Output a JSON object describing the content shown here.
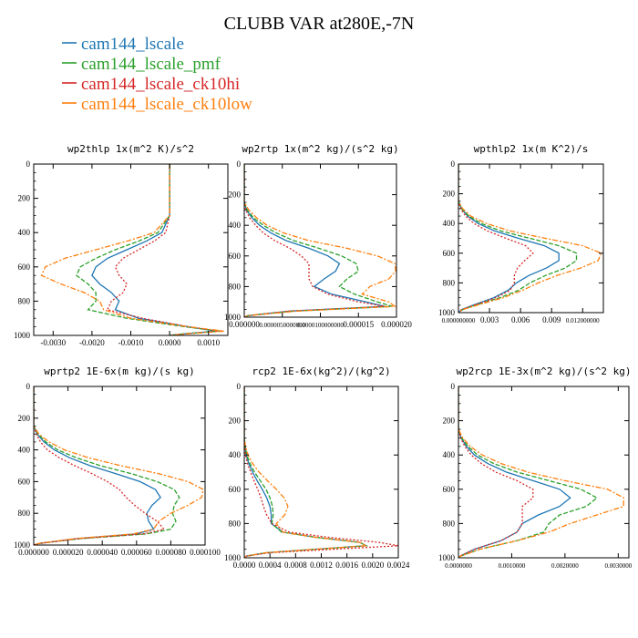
{
  "figure": {
    "title": "CLUBB VAR at280E,-7N",
    "legend": [
      {
        "name": "cam144_lscale",
        "color": "#1f77b4"
      },
      {
        "name": "cam144_lscale_pmf",
        "color": "#2ca02c"
      },
      {
        "name": "cam144_lscale_ck10hi",
        "color": "#d62728"
      },
      {
        "name": "cam144_lscale_ck10low",
        "color": "#ff7f0e"
      }
    ]
  },
  "chart_data": [
    {
      "type": "line",
      "title": "wp2thlp  1x(m^2 K)/s^2",
      "xlim": [
        -0.0035,
        0.0015
      ],
      "ylim": [
        1000,
        0
      ],
      "xticks": [
        -0.003,
        -0.002,
        -0.001,
        0.0,
        0.001
      ],
      "xtick_labels": [
        "-0.0030",
        "-0.0020",
        "-0.0010",
        "0.0000",
        "0.0010"
      ],
      "yticks": [
        0,
        200,
        400,
        600,
        800,
        1000
      ],
      "y": [
        0,
        300,
        400,
        450,
        500,
        550,
        600,
        650,
        700,
        750,
        800,
        850,
        900,
        950,
        975,
        990,
        1000
      ],
      "series": [
        {
          "name": "cam144_lscale",
          "values": [
            0,
            0,
            -0.0002,
            -0.0006,
            -0.0011,
            -0.0016,
            -0.0019,
            -0.002,
            -0.0018,
            -0.0015,
            -0.0013,
            -0.0014,
            -0.0008,
            0.0005,
            0.0012,
            0.0004,
            0.0
          ]
        },
        {
          "name": "cam144_lscale_pmf",
          "values": [
            0,
            0,
            -0.0003,
            -0.0008,
            -0.0014,
            -0.0019,
            -0.0023,
            -0.0024,
            -0.0021,
            -0.0019,
            -0.0019,
            -0.0021,
            -0.0011,
            0.0004,
            0.0013,
            0.0004,
            0.0
          ]
        },
        {
          "name": "cam144_lscale_ck10hi",
          "values": [
            0,
            0,
            -0.0001,
            -0.0004,
            -0.0008,
            -0.0012,
            -0.0014,
            -0.0013,
            -0.0011,
            -0.0012,
            -0.0015,
            -0.0016,
            -0.0007,
            0.0005,
            0.0013,
            0.0005,
            0.0
          ]
        },
        {
          "name": "cam144_lscale_ck10low",
          "values": [
            0,
            0,
            -0.0004,
            -0.0011,
            -0.0019,
            -0.0027,
            -0.0032,
            -0.0033,
            -0.0028,
            -0.0022,
            -0.0018,
            -0.0017,
            -0.001,
            0.0005,
            0.0014,
            0.0005,
            0.0
          ]
        }
      ]
    },
    {
      "type": "line",
      "title": "wp2rtp  1x(m^2 kg)/(s^2 kg)",
      "xlim": [
        0,
        2e-05
      ],
      "ylim": [
        1000,
        0
      ],
      "xticks": [
        0,
        5e-06,
        1e-05,
        1.5e-05,
        2e-05
      ],
      "xtick_labels": [
        "0.000000",
        "0.0000050000000",
        "0.0000100000000",
        "0.000015",
        "0.000020"
      ],
      "yticks": [
        0,
        200,
        400,
        600,
        800,
        1000
      ],
      "y": [
        0,
        250,
        300,
        350,
        400,
        450,
        500,
        550,
        600,
        650,
        700,
        750,
        800,
        850,
        900,
        930,
        960,
        990,
        1000
      ],
      "series": [
        {
          "name": "cam144_lscale",
          "values": [
            0,
            0,
            3e-07,
            1e-06,
            2e-06,
            3.5e-06,
            5.5e-06,
            8.5e-06,
            1.1e-05,
            1.25e-05,
            1.2e-05,
            1.05e-05,
            9.2e-06,
            1.15e-05,
            1.6e-05,
            1.85e-05,
            6e-06,
            5e-07,
            0
          ]
        },
        {
          "name": "cam144_lscale_pmf",
          "values": [
            0,
            0,
            4e-07,
            1.2e-06,
            2.5e-06,
            4.2e-06,
            6.5e-06,
            9.8e-06,
            1.28e-05,
            1.47e-05,
            1.5e-05,
            1.35e-05,
            1.25e-05,
            1.45e-05,
            1.75e-05,
            1.95e-05,
            6.5e-06,
            5e-07,
            0
          ]
        },
        {
          "name": "cam144_lscale_ck10hi",
          "values": [
            0,
            0,
            2e-07,
            7e-07,
            1.5e-06,
            2.5e-06,
            4e-06,
            6e-06,
            7.5e-06,
            8.5e-06,
            8.5e-06,
            8.5e-06,
            9e-06,
            1.1e-05,
            1.5e-05,
            1.85e-05,
            6e-06,
            5e-07,
            0
          ]
        },
        {
          "name": "cam144_lscale_ck10low",
          "values": [
            0,
            0,
            6e-07,
            1.6e-06,
            3e-06,
            5.2e-06,
            8.5e-06,
            1.35e-05,
            1.75e-05,
            1.98e-05,
            1.99e-05,
            1.9e-05,
            1.65e-05,
            1.55e-05,
            1.9e-05,
            1.98e-05,
            7e-06,
            5e-07,
            0
          ]
        }
      ]
    },
    {
      "type": "line",
      "title": "wpthlp2  1x(m K^2)/s",
      "xlim": [
        0,
        0.014
      ],
      "ylim": [
        1000,
        0
      ],
      "xticks": [
        0,
        0.003,
        0.006,
        0.009,
        0.012
      ],
      "xtick_labels": [
        "0.000000000",
        "0.003",
        "0.006",
        "0.009",
        "0.012000000"
      ],
      "yticks": [
        0,
        200,
        400,
        600,
        800,
        1000
      ],
      "y": [
        0,
        250,
        300,
        350,
        400,
        450,
        500,
        550,
        600,
        650,
        700,
        750,
        800,
        850,
        900,
        950,
        980,
        1000
      ],
      "series": [
        {
          "name": "cam144_lscale",
          "values": [
            0,
            0,
            0.0003,
            0.0009,
            0.0019,
            0.0035,
            0.0058,
            0.0083,
            0.0097,
            0.0097,
            0.0085,
            0.0068,
            0.0056,
            0.0048,
            0.0034,
            0.0014,
            0.0003,
            0
          ]
        },
        {
          "name": "cam144_lscale_pmf",
          "values": [
            0,
            0,
            0.0003,
            0.001,
            0.0022,
            0.0041,
            0.0069,
            0.0097,
            0.0114,
            0.0114,
            0.0103,
            0.0084,
            0.0069,
            0.0058,
            0.004,
            0.0016,
            0.0004,
            0
          ]
        },
        {
          "name": "cam144_lscale_ck10hi",
          "values": [
            0,
            0,
            0.0002,
            0.0007,
            0.0015,
            0.0028,
            0.0046,
            0.0065,
            0.0072,
            0.0064,
            0.0057,
            0.0054,
            0.0054,
            0.005,
            0.0036,
            0.0015,
            0.0003,
            0
          ]
        },
        {
          "name": "cam144_lscale_ck10low",
          "values": [
            0,
            0,
            0.0004,
            0.0012,
            0.0027,
            0.005,
            0.0084,
            0.012,
            0.0138,
            0.0135,
            0.0118,
            0.0095,
            0.0077,
            0.0062,
            0.0043,
            0.0018,
            0.0004,
            0
          ]
        }
      ]
    },
    {
      "type": "line",
      "title": "wprtp2  1E-6x(m kg)/(s kg)",
      "xlim": [
        0,
        0.0001
      ],
      "ylim": [
        1000,
        0
      ],
      "xticks": [
        0,
        2e-05,
        4e-05,
        6e-05,
        8e-05,
        0.0001
      ],
      "xtick_labels": [
        "0.000000",
        "0.000020",
        "0.000040",
        "0.000060",
        "0.000080",
        "0.000100"
      ],
      "yticks": [
        0,
        200,
        400,
        600,
        800,
        1000
      ],
      "y": [
        0,
        250,
        300,
        350,
        400,
        450,
        500,
        550,
        600,
        650,
        700,
        750,
        800,
        850,
        900,
        930,
        960,
        990,
        1000
      ],
      "series": [
        {
          "name": "cam144_lscale",
          "values": [
            0,
            0,
            2e-06,
            6e-06,
            1.2e-05,
            2.1e-05,
            3.3e-05,
            4.8e-05,
            6.2e-05,
            7.1e-05,
            7.4e-05,
            6.9e-05,
            6.6e-05,
            6.7e-05,
            7e-05,
            6e-05,
            2.5e-05,
            3e-06,
            0
          ]
        },
        {
          "name": "cam144_lscale_pmf",
          "values": [
            0,
            0,
            2.5e-06,
            7e-06,
            1.4e-05,
            2.5e-05,
            3.9e-05,
            5.7e-05,
            7.2e-05,
            8.2e-05,
            8.5e-05,
            8.2e-05,
            8.1e-05,
            8.3e-05,
            8e-05,
            6.6e-05,
            2.7e-05,
            3e-06,
            0
          ]
        },
        {
          "name": "cam144_lscale_ck10hi",
          "values": [
            0,
            0,
            1.5e-06,
            4e-06,
            8e-06,
            1.5e-05,
            2.4e-05,
            3.4e-05,
            4.3e-05,
            5e-05,
            5.4e-05,
            5.9e-05,
            6.5e-05,
            7.2e-05,
            7.6e-05,
            6.4e-05,
            2.6e-05,
            3e-06,
            0
          ]
        },
        {
          "name": "cam144_lscale_ck10low",
          "values": [
            0,
            0,
            3e-06,
            9e-06,
            1.8e-05,
            3.2e-05,
            5.1e-05,
            7.3e-05,
            9e-05,
            9.9e-05,
            9.8e-05,
            9e-05,
            8e-05,
            7.3e-05,
            7e-05,
            5.8e-05,
            2.4e-05,
            3e-06,
            0
          ]
        }
      ]
    },
    {
      "type": "line",
      "title": "rcp2  1E-6x(kg^2)/(kg^2)",
      "xlim": [
        0,
        0.0024
      ],
      "ylim": [
        1000,
        0
      ],
      "xticks": [
        0,
        0.0004,
        0.0008,
        0.0012,
        0.0016,
        0.002,
        0.0024
      ],
      "xtick_labels": [
        "0.0000",
        "0.0004",
        "0.0008",
        "0.0012",
        "0.0016",
        "0.0020",
        "0.0024"
      ],
      "yticks": [
        0,
        200,
        400,
        600,
        800,
        1000
      ],
      "y": [
        0,
        300,
        350,
        400,
        450,
        500,
        550,
        600,
        650,
        700,
        750,
        800,
        850,
        880,
        910,
        930,
        950,
        970,
        990,
        1000
      ],
      "series": [
        {
          "name": "cam144_lscale",
          "values": [
            0,
            0,
            1e-05,
            3e-05,
            7e-05,
            0.00013,
            0.0002,
            0.00028,
            0.00035,
            0.0004,
            0.00042,
            0.00042,
            0.0006,
            0.0011,
            0.0018,
            0.0019,
            0.0011,
            0.00035,
            3e-05,
            0
          ]
        },
        {
          "name": "cam144_lscale_pmf",
          "values": [
            0,
            0,
            1.5e-05,
            4e-05,
            9e-05,
            0.00016,
            0.00025,
            0.00034,
            0.0004,
            0.00044,
            0.00045,
            0.00043,
            0.00058,
            0.0011,
            0.0018,
            0.0019,
            0.0011,
            0.00035,
            3e-05,
            0
          ]
        },
        {
          "name": "cam144_lscale_ck10hi",
          "values": [
            0,
            0,
            8e-06,
            2e-05,
            5e-05,
            0.0001,
            0.00015,
            0.00021,
            0.00026,
            0.0003,
            0.00035,
            0.00043,
            0.0007,
            0.0013,
            0.0021,
            0.0024,
            0.0014,
            0.0004,
            4e-05,
            0
          ]
        },
        {
          "name": "cam144_lscale_ck10low",
          "values": [
            0,
            0,
            2e-05,
            6e-05,
            0.00013,
            0.00023,
            0.00036,
            0.0005,
            0.00062,
            0.00068,
            0.00063,
            0.0005,
            0.0006,
            0.0011,
            0.0018,
            0.0019,
            0.0011,
            0.00035,
            3e-05,
            0
          ]
        }
      ]
    },
    {
      "type": "line",
      "title": "wp2rcp  1E-3x(m^2 kg)/(s^2 kg)",
      "xlim": [
        0,
        0.0032
      ],
      "ylim": [
        1000,
        0
      ],
      "xticks": [
        0,
        0.001,
        0.002,
        0.003
      ],
      "xtick_labels": [
        "0.0000000",
        "0.0010000",
        "0.0020000",
        "0.0030000"
      ],
      "yticks": [
        0,
        200,
        400,
        600,
        800,
        1000
      ],
      "y": [
        0,
        250,
        300,
        350,
        400,
        450,
        500,
        550,
        600,
        650,
        700,
        750,
        800,
        850,
        900,
        950,
        990,
        1000
      ],
      "series": [
        {
          "name": "cam144_lscale",
          "values": [
            0,
            0,
            5e-05,
            0.00015,
            0.0003,
            0.00055,
            0.0009,
            0.0014,
            0.0019,
            0.0021,
            0.0019,
            0.0015,
            0.0012,
            0.0011,
            0.0008,
            0.0003,
            3e-05,
            0
          ]
        },
        {
          "name": "cam144_lscale_pmf",
          "values": [
            0,
            0,
            6e-05,
            0.00018,
            0.00036,
            0.00066,
            0.0011,
            0.0017,
            0.0023,
            0.0026,
            0.0024,
            0.0019,
            0.0017,
            0.0016,
            0.0011,
            0.0004,
            4e-05,
            0
          ]
        },
        {
          "name": "cam144_lscale_ck10hi",
          "values": [
            0,
            0,
            4e-05,
            0.00012,
            0.00024,
            0.00043,
            0.0007,
            0.0011,
            0.0014,
            0.0014,
            0.0012,
            0.0012,
            0.0012,
            0.0011,
            0.0008,
            0.0003,
            3e-05,
            0
          ]
        },
        {
          "name": "cam144_lscale_ck10low",
          "values": [
            0,
            0,
            8e-05,
            0.00022,
            0.00045,
            0.0008,
            0.0013,
            0.002,
            0.0028,
            0.0031,
            0.0031,
            0.0026,
            0.0021,
            0.0017,
            0.0011,
            0.0004,
            4e-05,
            0
          ]
        }
      ]
    }
  ]
}
